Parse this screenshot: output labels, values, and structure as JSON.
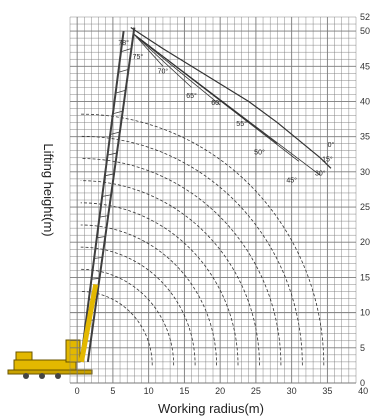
{
  "chart_data": {
    "type": "diagram",
    "title": "",
    "xlabel": "Working radius(m)",
    "ylabel": "Lifting height(m)",
    "xlim": [
      -10,
      40
    ],
    "ylim": [
      0,
      52
    ],
    "x_ticks": [
      "0",
      "5",
      "10",
      "15",
      "20",
      "25",
      "30",
      "35",
      "40"
    ],
    "y_ticks": [
      "0",
      "5",
      "10",
      "15",
      "20",
      "25",
      "30",
      "35",
      "40",
      "45",
      "50",
      "52"
    ],
    "grid": true,
    "boom_angles": [
      {
        "label": "78°",
        "x": 6.5,
        "y": 48
      },
      {
        "label": "75°",
        "x": 8.5,
        "y": 46
      },
      {
        "label": "70°",
        "x": 12,
        "y": 44
      },
      {
        "label": "65°",
        "x": 16,
        "y": 40.5
      },
      {
        "label": "60°",
        "x": 19.5,
        "y": 39.5
      },
      {
        "label": "55°",
        "x": 23,
        "y": 36.5
      },
      {
        "label": "50°",
        "x": 25.5,
        "y": 32.5
      },
      {
        "label": "45°",
        "x": 30,
        "y": 28.5
      },
      {
        "label": "30°",
        "x": 34,
        "y": 29.5
      },
      {
        "label": "15°",
        "x": 35,
        "y": 31.5
      },
      {
        "label": "0°",
        "x": 35.5,
        "y": 33.5
      }
    ],
    "colors": {
      "crane": "#e3b800",
      "boom": "#3f3f3f",
      "grid": "#7a7a7a",
      "envelope": "#333333"
    }
  }
}
